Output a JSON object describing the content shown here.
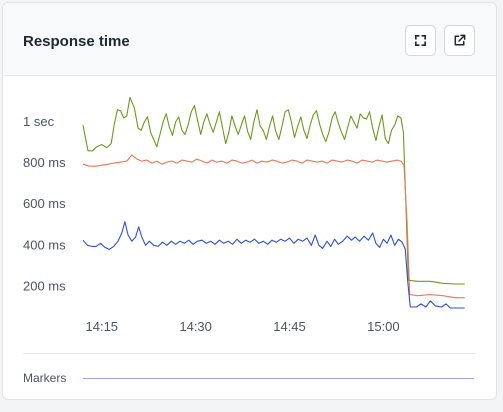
{
  "panel": {
    "title": "Response time",
    "markers_label": "Markers"
  },
  "toolbar": {
    "fullscreen_icon": "fullscreen-icon",
    "external_link_icon": "external-link-icon"
  },
  "colors": {
    "green": "#6b9a1e",
    "orange": "#e8795f",
    "blue": "#2f4fd4",
    "axis_text": "#4b5563",
    "markers_line": "#9aa7d8"
  },
  "chart_data": {
    "type": "line",
    "x_unit": "minutes",
    "x_ticks": [
      {
        "value": 15,
        "label": "14:15"
      },
      {
        "value": 30,
        "label": "14:30"
      },
      {
        "value": 45,
        "label": "14:45"
      },
      {
        "value": 60,
        "label": "15:00"
      }
    ],
    "y_ticks": [
      {
        "value": 200,
        "label": "200 ms"
      },
      {
        "value": 400,
        "label": "400 ms"
      },
      {
        "value": 600,
        "label": "600 ms"
      },
      {
        "value": 800,
        "label": "800 ms"
      },
      {
        "value": 1000,
        "label": "1 sec"
      }
    ],
    "xlim": [
      12.0,
      74.0
    ],
    "ylim": [
      95,
      1190
    ],
    "grid": false,
    "legend": false,
    "series": [
      {
        "color": "#6b9a1e",
        "points": [
          [
            12.0,
            985
          ],
          [
            12.8,
            860
          ],
          [
            13.5,
            860
          ],
          [
            14.2,
            880
          ],
          [
            15.0,
            890
          ],
          [
            15.8,
            875
          ],
          [
            16.5,
            895
          ],
          [
            17.0,
            990
          ],
          [
            17.5,
            1060
          ],
          [
            18.0,
            1055
          ],
          [
            18.5,
            1020
          ],
          [
            19.0,
            1030
          ],
          [
            19.5,
            1120
          ],
          [
            20.2,
            1070
          ],
          [
            20.8,
            970
          ],
          [
            21.3,
            960
          ],
          [
            21.8,
            1000
          ],
          [
            22.3,
            1025
          ],
          [
            22.8,
            950
          ],
          [
            23.3,
            915
          ],
          [
            23.8,
            880
          ],
          [
            24.3,
            940
          ],
          [
            24.8,
            1000
          ],
          [
            25.3,
            1040
          ],
          [
            25.8,
            975
          ],
          [
            26.3,
            935
          ],
          [
            26.8,
            1000
          ],
          [
            27.3,
            1025
          ],
          [
            27.8,
            960
          ],
          [
            28.3,
            940
          ],
          [
            28.8,
            985
          ],
          [
            29.3,
            1050
          ],
          [
            29.8,
            1080
          ],
          [
            30.3,
            1010
          ],
          [
            30.8,
            940
          ],
          [
            31.3,
            1000
          ],
          [
            31.8,
            1040
          ],
          [
            32.3,
            990
          ],
          [
            32.8,
            950
          ],
          [
            33.3,
            1000
          ],
          [
            33.8,
            1050
          ],
          [
            34.3,
            970
          ],
          [
            34.8,
            895
          ],
          [
            35.3,
            950
          ],
          [
            35.8,
            1030
          ],
          [
            36.3,
            980
          ],
          [
            36.8,
            940
          ],
          [
            37.3,
            985
          ],
          [
            37.8,
            1030
          ],
          [
            38.3,
            955
          ],
          [
            38.8,
            915
          ],
          [
            39.3,
            1000
          ],
          [
            39.8,
            1060
          ],
          [
            40.3,
            980
          ],
          [
            40.8,
            960
          ],
          [
            41.3,
            915
          ],
          [
            41.8,
            980
          ],
          [
            42.3,
            1030
          ],
          [
            42.8,
            955
          ],
          [
            43.3,
            915
          ],
          [
            43.8,
            980
          ],
          [
            44.3,
            1050
          ],
          [
            44.8,
            1060
          ],
          [
            45.3,
            1000
          ],
          [
            45.8,
            925
          ],
          [
            46.3,
            980
          ],
          [
            46.8,
            1025
          ],
          [
            47.3,
            960
          ],
          [
            47.8,
            920
          ],
          [
            48.3,
            985
          ],
          [
            48.8,
            1035
          ],
          [
            49.3,
            1055
          ],
          [
            49.8,
            990
          ],
          [
            50.3,
            940
          ],
          [
            50.8,
            905
          ],
          [
            51.3,
            950
          ],
          [
            51.8,
            1020
          ],
          [
            52.3,
            1050
          ],
          [
            52.8,
            995
          ],
          [
            53.3,
            950
          ],
          [
            53.8,
            915
          ],
          [
            54.3,
            975
          ],
          [
            54.8,
            1030
          ],
          [
            55.3,
            1000
          ],
          [
            55.8,
            970
          ],
          [
            56.3,
            1040
          ],
          [
            56.8,
            1020
          ],
          [
            57.3,
            1015
          ],
          [
            57.8,
            1050
          ],
          [
            58.3,
            970
          ],
          [
            58.8,
            910
          ],
          [
            59.3,
            980
          ],
          [
            59.8,
            1035
          ],
          [
            60.3,
            920
          ],
          [
            60.8,
            895
          ],
          [
            61.3,
            960
          ],
          [
            61.8,
            985
          ],
          [
            62.3,
            1030
          ],
          [
            62.8,
            1020
          ],
          [
            63.2,
            950
          ],
          [
            63.6,
            600
          ],
          [
            64.0,
            230
          ],
          [
            65.5,
            225
          ],
          [
            67.5,
            225
          ],
          [
            69.5,
            215
          ],
          [
            71.5,
            212
          ],
          [
            73.0,
            212
          ]
        ]
      },
      {
        "color": "#e8795f",
        "points": [
          [
            12.0,
            795
          ],
          [
            13.0,
            785
          ],
          [
            14.0,
            785
          ],
          [
            15.0,
            790
          ],
          [
            16.0,
            795
          ],
          [
            17.0,
            800
          ],
          [
            18.0,
            805
          ],
          [
            19.0,
            810
          ],
          [
            19.8,
            840
          ],
          [
            20.6,
            820
          ],
          [
            21.4,
            810
          ],
          [
            22.2,
            815
          ],
          [
            23.0,
            800
          ],
          [
            23.8,
            810
          ],
          [
            24.6,
            795
          ],
          [
            25.4,
            805
          ],
          [
            26.2,
            810
          ],
          [
            27.0,
            800
          ],
          [
            27.8,
            815
          ],
          [
            28.6,
            810
          ],
          [
            29.4,
            805
          ],
          [
            30.2,
            820
          ],
          [
            31.0,
            810
          ],
          [
            31.8,
            800
          ],
          [
            32.6,
            815
          ],
          [
            33.4,
            805
          ],
          [
            34.2,
            810
          ],
          [
            35.0,
            800
          ],
          [
            35.8,
            815
          ],
          [
            36.6,
            810
          ],
          [
            37.4,
            800
          ],
          [
            38.2,
            805
          ],
          [
            39.0,
            815
          ],
          [
            39.8,
            800
          ],
          [
            40.6,
            810
          ],
          [
            41.4,
            805
          ],
          [
            42.2,
            815
          ],
          [
            43.0,
            810
          ],
          [
            43.8,
            800
          ],
          [
            44.6,
            805
          ],
          [
            45.4,
            815
          ],
          [
            46.2,
            810
          ],
          [
            47.0,
            800
          ],
          [
            47.8,
            815
          ],
          [
            48.6,
            810
          ],
          [
            49.4,
            805
          ],
          [
            50.2,
            810
          ],
          [
            51.0,
            800
          ],
          [
            51.8,
            815
          ],
          [
            52.6,
            810
          ],
          [
            53.4,
            805
          ],
          [
            54.2,
            815
          ],
          [
            55.0,
            810
          ],
          [
            55.8,
            800
          ],
          [
            56.6,
            815
          ],
          [
            57.4,
            810
          ],
          [
            58.2,
            805
          ],
          [
            59.0,
            815
          ],
          [
            59.8,
            810
          ],
          [
            60.6,
            805
          ],
          [
            61.4,
            810
          ],
          [
            62.2,
            815
          ],
          [
            62.8,
            810
          ],
          [
            63.3,
            790
          ],
          [
            63.8,
            500
          ],
          [
            64.2,
            160
          ],
          [
            65.5,
            155
          ],
          [
            67.5,
            160
          ],
          [
            69.5,
            155
          ],
          [
            71.5,
            145
          ],
          [
            73.0,
            145
          ]
        ]
      },
      {
        "color": "#2f4fd4",
        "points": [
          [
            12.0,
            425
          ],
          [
            12.7,
            400
          ],
          [
            13.4,
            395
          ],
          [
            14.1,
            395
          ],
          [
            14.8,
            410
          ],
          [
            15.5,
            390
          ],
          [
            16.2,
            380
          ],
          [
            16.9,
            395
          ],
          [
            17.6,
            420
          ],
          [
            18.2,
            460
          ],
          [
            18.7,
            515
          ],
          [
            19.2,
            450
          ],
          [
            19.8,
            420
          ],
          [
            20.4,
            440
          ],
          [
            20.9,
            490
          ],
          [
            21.4,
            440
          ],
          [
            22.0,
            400
          ],
          [
            22.6,
            420
          ],
          [
            23.3,
            400
          ],
          [
            24.0,
            395
          ],
          [
            24.7,
            415
          ],
          [
            25.4,
            400
          ],
          [
            26.1,
            420
          ],
          [
            26.8,
            405
          ],
          [
            27.5,
            420
          ],
          [
            28.2,
            410
          ],
          [
            28.9,
            425
          ],
          [
            29.6,
            405
          ],
          [
            30.3,
            420
          ],
          [
            31.0,
            425
          ],
          [
            31.7,
            410
          ],
          [
            32.4,
            420
          ],
          [
            33.1,
            405
          ],
          [
            33.8,
            425
          ],
          [
            34.5,
            410
          ],
          [
            35.2,
            420
          ],
          [
            35.9,
            405
          ],
          [
            36.6,
            430
          ],
          [
            37.3,
            410
          ],
          [
            38.0,
            425
          ],
          [
            38.7,
            415
          ],
          [
            39.4,
            430
          ],
          [
            40.1,
            410
          ],
          [
            40.8,
            420
          ],
          [
            41.5,
            405
          ],
          [
            42.2,
            425
          ],
          [
            42.9,
            415
          ],
          [
            43.6,
            430
          ],
          [
            44.3,
            420
          ],
          [
            45.0,
            435
          ],
          [
            45.7,
            410
          ],
          [
            46.4,
            430
          ],
          [
            47.1,
            420
          ],
          [
            47.8,
            435
          ],
          [
            48.5,
            400
          ],
          [
            49.1,
            450
          ],
          [
            49.7,
            400
          ],
          [
            50.3,
            385
          ],
          [
            51.0,
            420
          ],
          [
            51.6,
            395
          ],
          [
            52.2,
            430
          ],
          [
            52.8,
            405
          ],
          [
            53.5,
            420
          ],
          [
            54.2,
            445
          ],
          [
            54.9,
            425
          ],
          [
            55.5,
            440
          ],
          [
            56.2,
            420
          ],
          [
            56.9,
            445
          ],
          [
            57.6,
            425
          ],
          [
            58.3,
            460
          ],
          [
            58.8,
            410
          ],
          [
            59.4,
            390
          ],
          [
            60.0,
            430
          ],
          [
            60.6,
            410
          ],
          [
            61.2,
            450
          ],
          [
            61.8,
            400
          ],
          [
            62.4,
            430
          ],
          [
            63.0,
            415
          ],
          [
            63.5,
            380
          ],
          [
            63.9,
            220
          ],
          [
            64.3,
            100
          ],
          [
            65.3,
            100
          ],
          [
            66.0,
            115
          ],
          [
            66.8,
            100
          ],
          [
            67.5,
            130
          ],
          [
            68.3,
            105
          ],
          [
            69.3,
            100
          ],
          [
            70.0,
            115
          ],
          [
            70.7,
            95
          ],
          [
            71.5,
            95
          ],
          [
            73.0,
            95
          ]
        ]
      }
    ]
  }
}
